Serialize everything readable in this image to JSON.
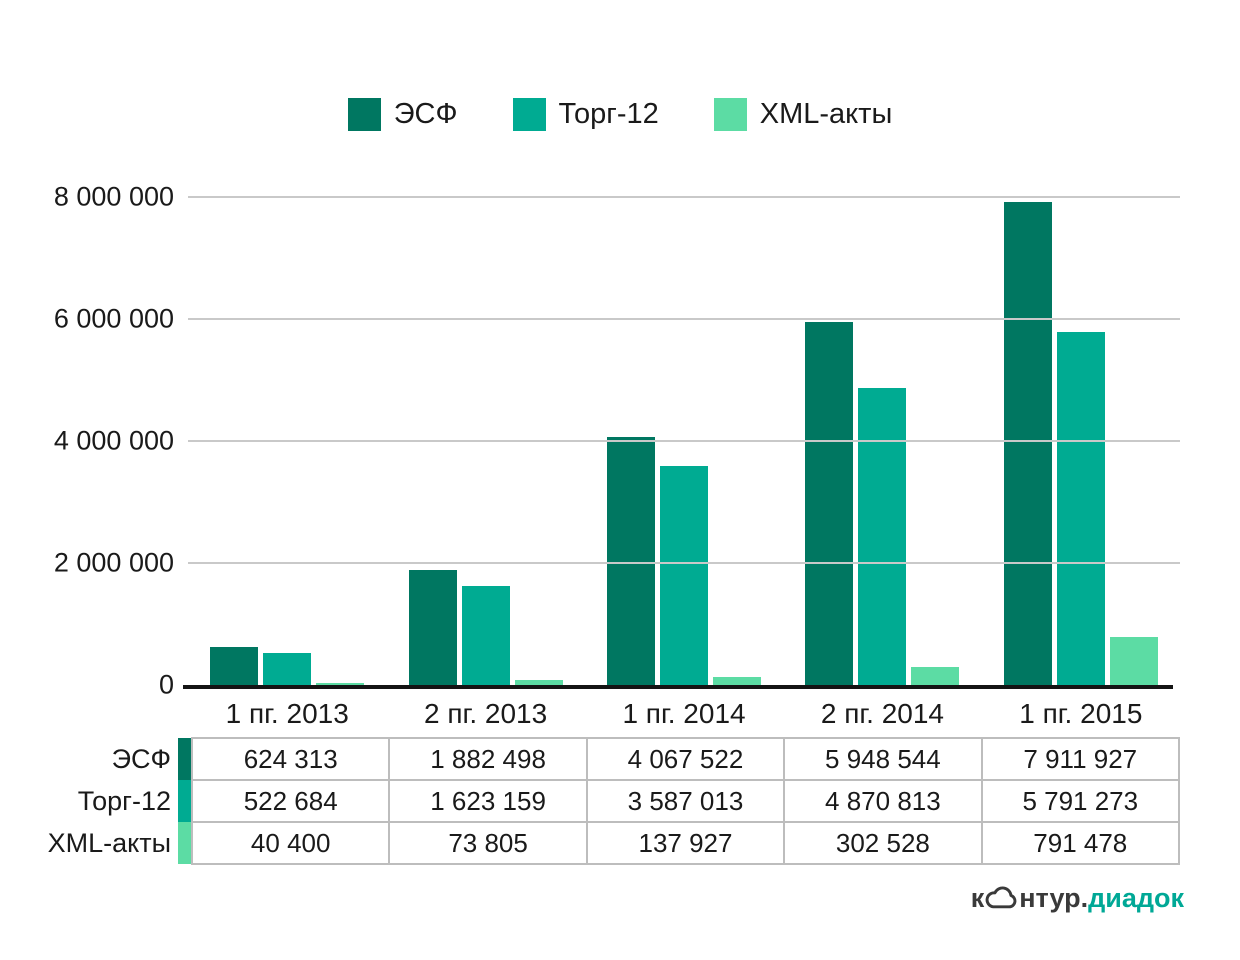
{
  "colors": {
    "series_esf": "#007761",
    "series_torg12": "#00AB92",
    "series_xml": "#5CDCA4",
    "gridline": "#C9C9C9",
    "axis": "#141414",
    "table_border": "#BDBDBD",
    "text": "#1A1A1A",
    "logo_dark": "#3A3A3A",
    "logo_teal": "#00A896"
  },
  "chart_data": {
    "type": "bar",
    "title": "",
    "xlabel": "",
    "ylabel": "",
    "categories": [
      "1 пг. 2013",
      "2 пг. 2013",
      "1 пг. 2014",
      "2 пг. 2014",
      "1 пг. 2015"
    ],
    "series": [
      {
        "name": "ЭСФ",
        "color": "#007761",
        "values": [
          624313,
          1882498,
          4067522,
          5948544,
          7911927
        ]
      },
      {
        "name": "Торг-12",
        "color": "#00AB92",
        "values": [
          522684,
          1623159,
          3587013,
          4870813,
          5791273
        ]
      },
      {
        "name": "XML-акты",
        "color": "#5CDCA4",
        "values": [
          40400,
          73805,
          137927,
          302528,
          791478
        ]
      }
    ],
    "ylim": [
      0,
      8000000
    ],
    "yticks": [
      {
        "value": 0,
        "label": "0"
      },
      {
        "value": 2000000,
        "label": "2 000 000"
      },
      {
        "value": 4000000,
        "label": "4 000 000"
      },
      {
        "value": 6000000,
        "label": "6 000 000"
      },
      {
        "value": 8000000,
        "label": "8 000 000"
      }
    ],
    "grid": true,
    "legend_position": "top-center"
  },
  "table": {
    "rows": [
      {
        "label": "ЭСФ",
        "values": [
          "624 313",
          "1 882 498",
          "4 067 522",
          "5 948 544",
          "7 911 927"
        ]
      },
      {
        "label": "Торг-12",
        "values": [
          "522 684",
          "1 623 159",
          "3 587 013",
          "4 870 813",
          "5 791 273"
        ]
      },
      {
        "label": "XML-акты",
        "values": [
          "40 400",
          "73 805",
          "137 927",
          "302 528",
          "791 478"
        ]
      }
    ]
  },
  "logo": {
    "part1": "к",
    "part2": "нтур.",
    "part3": "диадок"
  }
}
